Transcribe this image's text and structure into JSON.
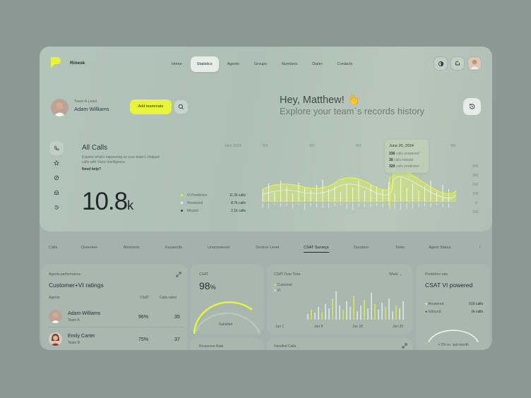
{
  "brand": {
    "name": "Rinesk"
  },
  "nav": {
    "items": [
      "Home",
      "Statistics",
      "Agents",
      "Groups",
      "Numbers",
      "Dialer",
      "Contacts"
    ],
    "active": "Statistics"
  },
  "user": {
    "role": "Team A Lead",
    "name": "Adam Williams",
    "add_button": "Add teammate"
  },
  "greeting": {
    "title": "Hey, Matthew! 👋",
    "subtitle": "Explore your team`s records history"
  },
  "all_calls": {
    "title": "All Calls",
    "description": "Explore what's happening on your team's Dialpad calls with Voice Intelligence.",
    "help": "Need help?",
    "total_number": "10.8",
    "total_suffix": "k",
    "legend": [
      {
        "label": "VI Prediction",
        "value": "11.2k calls",
        "color": "#e6f43a"
      },
      {
        "label": "Answered",
        "value": "8.7k calls",
        "color": "#eef2ef"
      },
      {
        "label": "Missed",
        "value": "2.1k calls",
        "color": "#3a4440"
      }
    ],
    "x_labels": [
      "June 2024",
      "W1",
      "W2",
      "W3",
      "W4",
      "W5"
    ],
    "y_labels": [
      "400",
      "300",
      "200",
      "100",
      "0",
      "100"
    ],
    "tooltip": {
      "title": "June 20, 2024",
      "rows": [
        {
          "num": "236",
          "txt": "calls answered"
        },
        {
          "num": "30",
          "txt": "calls missed"
        },
        {
          "num": "320",
          "txt": "calls prediction"
        }
      ]
    }
  },
  "tabs": [
    "Calls",
    "Overview",
    "Moments",
    "Keywords",
    "Unanswered",
    "Service Level",
    "CSAT Surveys",
    "Duration",
    "Texts",
    "Agent Status"
  ],
  "active_tab": "CSAT Surveys",
  "agents_card": {
    "label": "Agents performance",
    "title": "Customer+VI ratings",
    "columns": [
      "Agents",
      "CSAT",
      "Calls rated"
    ],
    "rows": [
      {
        "name": "Adam Williams",
        "team": "Team A",
        "csat": "96%",
        "rated": "35"
      },
      {
        "name": "Emily Carter",
        "team": "Team B",
        "csat": "75%",
        "rated": "37"
      }
    ]
  },
  "csat_card": {
    "label": "CSAT",
    "value": "98",
    "unit": "%",
    "caption": "Satisfied",
    "gauge_fraction": 0.98
  },
  "response_rate": {
    "label": "Response Rate"
  },
  "csat_time": {
    "label": "CSAT Over Time",
    "period": "Week",
    "legend": [
      "Customer",
      "VI"
    ],
    "x_labels": [
      "Jun 1",
      "Jun 8",
      "Jun 16",
      "Jun 20"
    ]
  },
  "handled_calls": {
    "label": "Handled Calls"
  },
  "prediction": {
    "label": "Prediction rate",
    "title": "CSAT VI powered",
    "rows": [
      {
        "label": "Answered",
        "value": "516 calls"
      },
      {
        "label": "Inbound",
        "value": "1k calls"
      }
    ],
    "footer": "+ 2% vs. last month"
  },
  "colors": {
    "accent": "#e6f43a",
    "panel": "#a3b2ac",
    "background": "#8c9893"
  }
}
